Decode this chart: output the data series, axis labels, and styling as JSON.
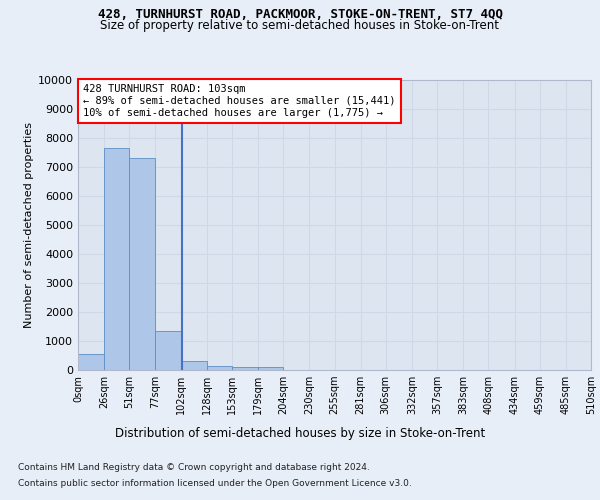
{
  "title1": "428, TURNHURST ROAD, PACKMOOR, STOKE-ON-TRENT, ST7 4QQ",
  "title2": "Size of property relative to semi-detached houses in Stoke-on-Trent",
  "xlabel": "Distribution of semi-detached houses by size in Stoke-on-Trent",
  "ylabel": "Number of semi-detached properties",
  "footer1": "Contains HM Land Registry data © Crown copyright and database right 2024.",
  "footer2": "Contains public sector information licensed under the Open Government Licence v3.0.",
  "annotation_line1": "428 TURNHURST ROAD: 103sqm",
  "annotation_line2": "← 89% of semi-detached houses are smaller (15,441)",
  "annotation_line3": "10% of semi-detached houses are larger (1,775) →",
  "property_size": 103,
  "bar_left_edges": [
    0,
    26,
    51,
    77,
    102,
    128,
    153,
    179,
    204,
    230,
    255,
    281,
    306,
    332,
    357,
    383,
    408,
    434,
    459,
    485
  ],
  "bar_widths": [
    26,
    25,
    26,
    25,
    26,
    25,
    26,
    25,
    26,
    25,
    26,
    25,
    26,
    25,
    26,
    25,
    26,
    25,
    26,
    25
  ],
  "bar_heights": [
    550,
    7650,
    7300,
    1350,
    310,
    155,
    110,
    95,
    0,
    0,
    0,
    0,
    0,
    0,
    0,
    0,
    0,
    0,
    0,
    0
  ],
  "bar_color": "#aec6e8",
  "bar_edge_color": "#5b8ec4",
  "vline_color": "#4472c4",
  "vline_x": 103,
  "ylim": [
    0,
    10000
  ],
  "xlim": [
    0,
    510
  ],
  "yticks": [
    0,
    1000,
    2000,
    3000,
    4000,
    5000,
    6000,
    7000,
    8000,
    9000,
    10000
  ],
  "xtick_labels": [
    "0sqm",
    "26sqm",
    "51sqm",
    "77sqm",
    "102sqm",
    "128sqm",
    "153sqm",
    "179sqm",
    "204sqm",
    "230sqm",
    "255sqm",
    "281sqm",
    "306sqm",
    "332sqm",
    "357sqm",
    "383sqm",
    "408sqm",
    "434sqm",
    "459sqm",
    "485sqm",
    "510sqm"
  ],
  "xtick_positions": [
    0,
    26,
    51,
    77,
    102,
    128,
    153,
    179,
    204,
    230,
    255,
    281,
    306,
    332,
    357,
    383,
    408,
    434,
    459,
    485,
    510
  ],
  "annotation_box_color": "white",
  "annotation_box_edge_color": "red",
  "grid_color": "#d0d8e8",
  "bg_color": "#e8eef8",
  "plot_bg_color": "#dde6f0"
}
